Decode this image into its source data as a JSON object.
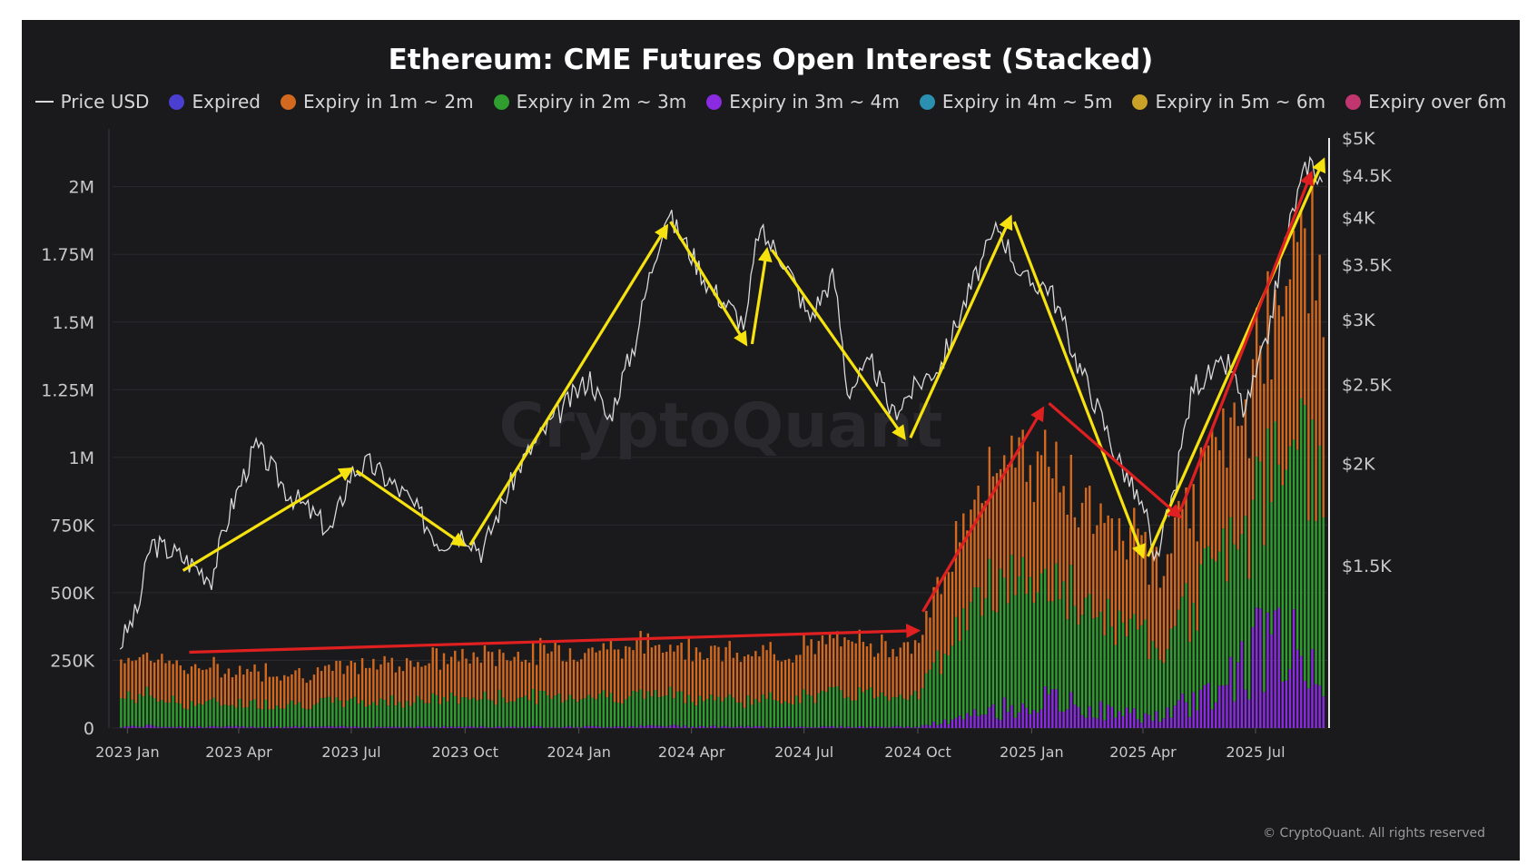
{
  "chart_data": {
    "type": "bar",
    "title": "Ethereum: CME Futures Open Interest (Stacked)",
    "watermark": "CryptoQuant",
    "copyright": "© CryptoQuant. All rights reserved",
    "legend": [
      {
        "name": "Price USD",
        "color": "#d9d9d9",
        "shape": "line"
      },
      {
        "name": "Expired",
        "color": "#4a3fd0",
        "shape": "dot"
      },
      {
        "name": "Expiry in 1m ~ 2m",
        "color": "#d2691e",
        "shape": "dot"
      },
      {
        "name": "Expiry in 2m ~ 3m",
        "color": "#2f9e2f",
        "shape": "dot"
      },
      {
        "name": "Expiry in 3m ~ 4m",
        "color": "#8a2be2",
        "shape": "dot"
      },
      {
        "name": "Expiry in 4m ~ 5m",
        "color": "#2a8fb0",
        "shape": "dot"
      },
      {
        "name": "Expiry in 5m ~ 6m",
        "color": "#c9a227",
        "shape": "dot"
      },
      {
        "name": "Expiry over 6m",
        "color": "#c2366f",
        "shape": "dot"
      }
    ],
    "x_ticks": [
      "2023 Jan",
      "2023 Apr",
      "2023 Jul",
      "2023 Oct",
      "2024 Jan",
      "2024 Apr",
      "2024 Jul",
      "2024 Oct",
      "2025 Jan",
      "2025 Apr",
      "2025 Jul"
    ],
    "x_range": [
      "2022-12-20",
      "2025-08-28"
    ],
    "y_left_ticks": [
      {
        "label": "0",
        "value": 0
      },
      {
        "label": "250K",
        "value": 250000
      },
      {
        "label": "500K",
        "value": 500000
      },
      {
        "label": "750K",
        "value": 750000
      },
      {
        "label": "1M",
        "value": 1000000
      },
      {
        "label": "1.25M",
        "value": 1250000
      },
      {
        "label": "1.5M",
        "value": 1500000
      },
      {
        "label": "1.75M",
        "value": 1750000
      },
      {
        "label": "2M",
        "value": 2000000
      }
    ],
    "y_left_range": [
      0,
      2180000
    ],
    "y_right_scale": "log",
    "y_right_ticks": [
      {
        "label": "$1.5K",
        "value": 1500
      },
      {
        "label": "$2K",
        "value": 2000
      },
      {
        "label": "$2.5K",
        "value": 2500
      },
      {
        "label": "$3K",
        "value": 3000
      },
      {
        "label": "$3.5K",
        "value": 3500
      },
      {
        "label": "$4K",
        "value": 4000
      },
      {
        "label": "$4.5K",
        "value": 4500
      },
      {
        "label": "$5K",
        "value": 5000
      }
    ],
    "y_right_range": [
      950,
      5000
    ],
    "open_interest_points": [
      {
        "date": "2022-12-26",
        "exp_1m_2m": 150000,
        "exp_2m_3m": 110000,
        "exp_3m_4m": 5000
      },
      {
        "date": "2023-01-15",
        "exp_1m_2m": 160000,
        "exp_2m_3m": 120000,
        "exp_3m_4m": 8000
      },
      {
        "date": "2023-02-15",
        "exp_1m_2m": 140000,
        "exp_2m_3m": 90000,
        "exp_3m_4m": 5000
      },
      {
        "date": "2023-04-01",
        "exp_1m_2m": 130000,
        "exp_2m_3m": 90000,
        "exp_3m_4m": 5000
      },
      {
        "date": "2023-06-01",
        "exp_1m_2m": 120000,
        "exp_2m_3m": 90000,
        "exp_3m_4m": 5000
      },
      {
        "date": "2023-08-01",
        "exp_1m_2m": 150000,
        "exp_2m_3m": 100000,
        "exp_3m_4m": 5000
      },
      {
        "date": "2023-10-01",
        "exp_1m_2m": 160000,
        "exp_2m_3m": 110000,
        "exp_3m_4m": 5000
      },
      {
        "date": "2024-01-01",
        "exp_1m_2m": 180000,
        "exp_2m_3m": 120000,
        "exp_3m_4m": 5000
      },
      {
        "date": "2024-03-15",
        "exp_1m_2m": 200000,
        "exp_2m_3m": 120000,
        "exp_3m_4m": 8000
      },
      {
        "date": "2024-05-15",
        "exp_1m_2m": 170000,
        "exp_2m_3m": 100000,
        "exp_3m_4m": 5000
      },
      {
        "date": "2024-08-01",
        "exp_1m_2m": 200000,
        "exp_2m_3m": 130000,
        "exp_3m_4m": 5000
      },
      {
        "date": "2024-10-01",
        "exp_1m_2m": 190000,
        "exp_2m_3m": 130000,
        "exp_3m_4m": 5000
      },
      {
        "date": "2024-11-01",
        "exp_1m_2m": 350000,
        "exp_2m_3m": 350000,
        "exp_3m_4m": 30000
      },
      {
        "date": "2024-12-15",
        "exp_1m_2m": 500000,
        "exp_2m_3m": 550000,
        "exp_3m_4m": 80000
      },
      {
        "date": "2025-01-15",
        "exp_1m_2m": 450000,
        "exp_2m_3m": 450000,
        "exp_3m_4m": 100000
      },
      {
        "date": "2025-03-01",
        "exp_1m_2m": 380000,
        "exp_2m_3m": 340000,
        "exp_3m_4m": 60000
      },
      {
        "date": "2025-04-15",
        "exp_1m_2m": 330000,
        "exp_2m_3m": 280000,
        "exp_3m_4m": 40000
      },
      {
        "date": "2025-06-01",
        "exp_1m_2m": 450000,
        "exp_2m_3m": 500000,
        "exp_3m_4m": 150000
      },
      {
        "date": "2025-07-15",
        "exp_1m_2m": 550000,
        "exp_2m_3m": 600000,
        "exp_3m_4m": 350000
      },
      {
        "date": "2025-08-10",
        "exp_1m_2m": 800000,
        "exp_2m_3m": 900000,
        "exp_3m_4m": 250000
      },
      {
        "date": "2025-08-25",
        "exp_1m_2m": 850000,
        "exp_2m_3m": 750000,
        "exp_3m_4m": 200000
      }
    ],
    "price_usd_points": [
      {
        "date": "2022-12-26",
        "price": 1200
      },
      {
        "date": "2023-01-10",
        "price": 1330
      },
      {
        "date": "2023-01-20",
        "price": 1600
      },
      {
        "date": "2023-02-10",
        "price": 1550
      },
      {
        "date": "2023-03-10",
        "price": 1450
      },
      {
        "date": "2023-03-25",
        "price": 1750
      },
      {
        "date": "2023-04-15",
        "price": 2100
      },
      {
        "date": "2023-05-10",
        "price": 1850
      },
      {
        "date": "2023-06-15",
        "price": 1650
      },
      {
        "date": "2023-07-01",
        "price": 1950
      },
      {
        "date": "2023-07-15",
        "price": 2000
      },
      {
        "date": "2023-08-15",
        "price": 1820
      },
      {
        "date": "2023-09-10",
        "price": 1600
      },
      {
        "date": "2023-10-01",
        "price": 1650
      },
      {
        "date": "2023-10-15",
        "price": 1560
      },
      {
        "date": "2023-11-01",
        "price": 1800
      },
      {
        "date": "2023-11-15",
        "price": 2000
      },
      {
        "date": "2023-12-10",
        "price": 2250
      },
      {
        "date": "2024-01-10",
        "price": 2550
      },
      {
        "date": "2024-01-25",
        "price": 2250
      },
      {
        "date": "2024-02-15",
        "price": 2800
      },
      {
        "date": "2024-03-12",
        "price": 4050
      },
      {
        "date": "2024-04-15",
        "price": 3300
      },
      {
        "date": "2024-05-15",
        "price": 2950
      },
      {
        "date": "2024-05-25",
        "price": 3850
      },
      {
        "date": "2024-06-15",
        "price": 3550
      },
      {
        "date": "2024-07-05",
        "price": 3000
      },
      {
        "date": "2024-07-25",
        "price": 3400
      },
      {
        "date": "2024-08-05",
        "price": 2450
      },
      {
        "date": "2024-08-25",
        "price": 2650
      },
      {
        "date": "2024-09-10",
        "price": 2300
      },
      {
        "date": "2024-10-01",
        "price": 2500
      },
      {
        "date": "2024-10-20",
        "price": 2650
      },
      {
        "date": "2024-11-10",
        "price": 3200
      },
      {
        "date": "2024-12-05",
        "price": 3900
      },
      {
        "date": "2024-12-25",
        "price": 3350
      },
      {
        "date": "2025-01-15",
        "price": 3300
      },
      {
        "date": "2025-02-05",
        "price": 2700
      },
      {
        "date": "2025-03-10",
        "price": 2050
      },
      {
        "date": "2025-04-05",
        "price": 1700
      },
      {
        "date": "2025-04-09",
        "price": 1480
      },
      {
        "date": "2025-04-25",
        "price": 1800
      },
      {
        "date": "2025-05-12",
        "price": 2500
      },
      {
        "date": "2025-06-10",
        "price": 2650
      },
      {
        "date": "2025-06-22",
        "price": 2300
      },
      {
        "date": "2025-07-10",
        "price": 2800
      },
      {
        "date": "2025-07-25",
        "price": 3750
      },
      {
        "date": "2025-08-13",
        "price": 4700
      },
      {
        "date": "2025-08-25",
        "price": 4400
      }
    ],
    "annotations": [
      {
        "color": "#f5e20f",
        "from": {
          "date": "2023-02-15",
          "price": 1480
        },
        "to": {
          "date": "2023-07-01",
          "price": 1970
        }
      },
      {
        "color": "#f5e20f",
        "from": {
          "date": "2023-07-05",
          "price": 1960
        },
        "to": {
          "date": "2023-09-30",
          "price": 1590
        }
      },
      {
        "color": "#f5e20f",
        "from": {
          "date": "2023-10-05",
          "price": 1590
        },
        "to": {
          "date": "2024-03-12",
          "price": 3900
        }
      },
      {
        "color": "#f5e20f",
        "from": {
          "date": "2024-03-15",
          "price": 3950
        },
        "to": {
          "date": "2024-05-15",
          "price": 2800
        }
      },
      {
        "color": "#f5e20f",
        "from": {
          "date": "2024-05-20",
          "price": 2800
        },
        "to": {
          "date": "2024-06-01",
          "price": 3650
        }
      },
      {
        "color": "#f5e20f",
        "from": {
          "date": "2024-06-05",
          "price": 3650
        },
        "to": {
          "date": "2024-09-20",
          "price": 2150
        }
      },
      {
        "color": "#f5e20f",
        "from": {
          "date": "2024-09-25",
          "price": 2150
        },
        "to": {
          "date": "2024-12-15",
          "price": 4000
        }
      },
      {
        "color": "#f5e20f",
        "from": {
          "date": "2024-12-18",
          "price": 3950
        },
        "to": {
          "date": "2025-04-01",
          "price": 1540
        }
      },
      {
        "color": "#f5e20f",
        "from": {
          "date": "2025-04-05",
          "price": 1540
        },
        "to": {
          "date": "2025-08-25",
          "price": 4700
        }
      },
      {
        "color": "#e02020",
        "from": {
          "date": "2023-02-20",
          "oi": 280000
        },
        "to": {
          "date": "2024-10-01",
          "oi": 360000
        }
      },
      {
        "color": "#e02020",
        "from": {
          "date": "2024-10-05",
          "oi": 430000
        },
        "to": {
          "date": "2025-01-10",
          "oi": 1180000
        }
      },
      {
        "color": "#e02020",
        "from": {
          "date": "2025-01-15",
          "oi": 1200000
        },
        "to": {
          "date": "2025-05-01",
          "oi": 780000
        }
      },
      {
        "color": "#e02020",
        "from": {
          "date": "2025-05-01",
          "oi": 800000
        },
        "to": {
          "date": "2025-08-15",
          "oi": 2050000
        }
      }
    ]
  }
}
